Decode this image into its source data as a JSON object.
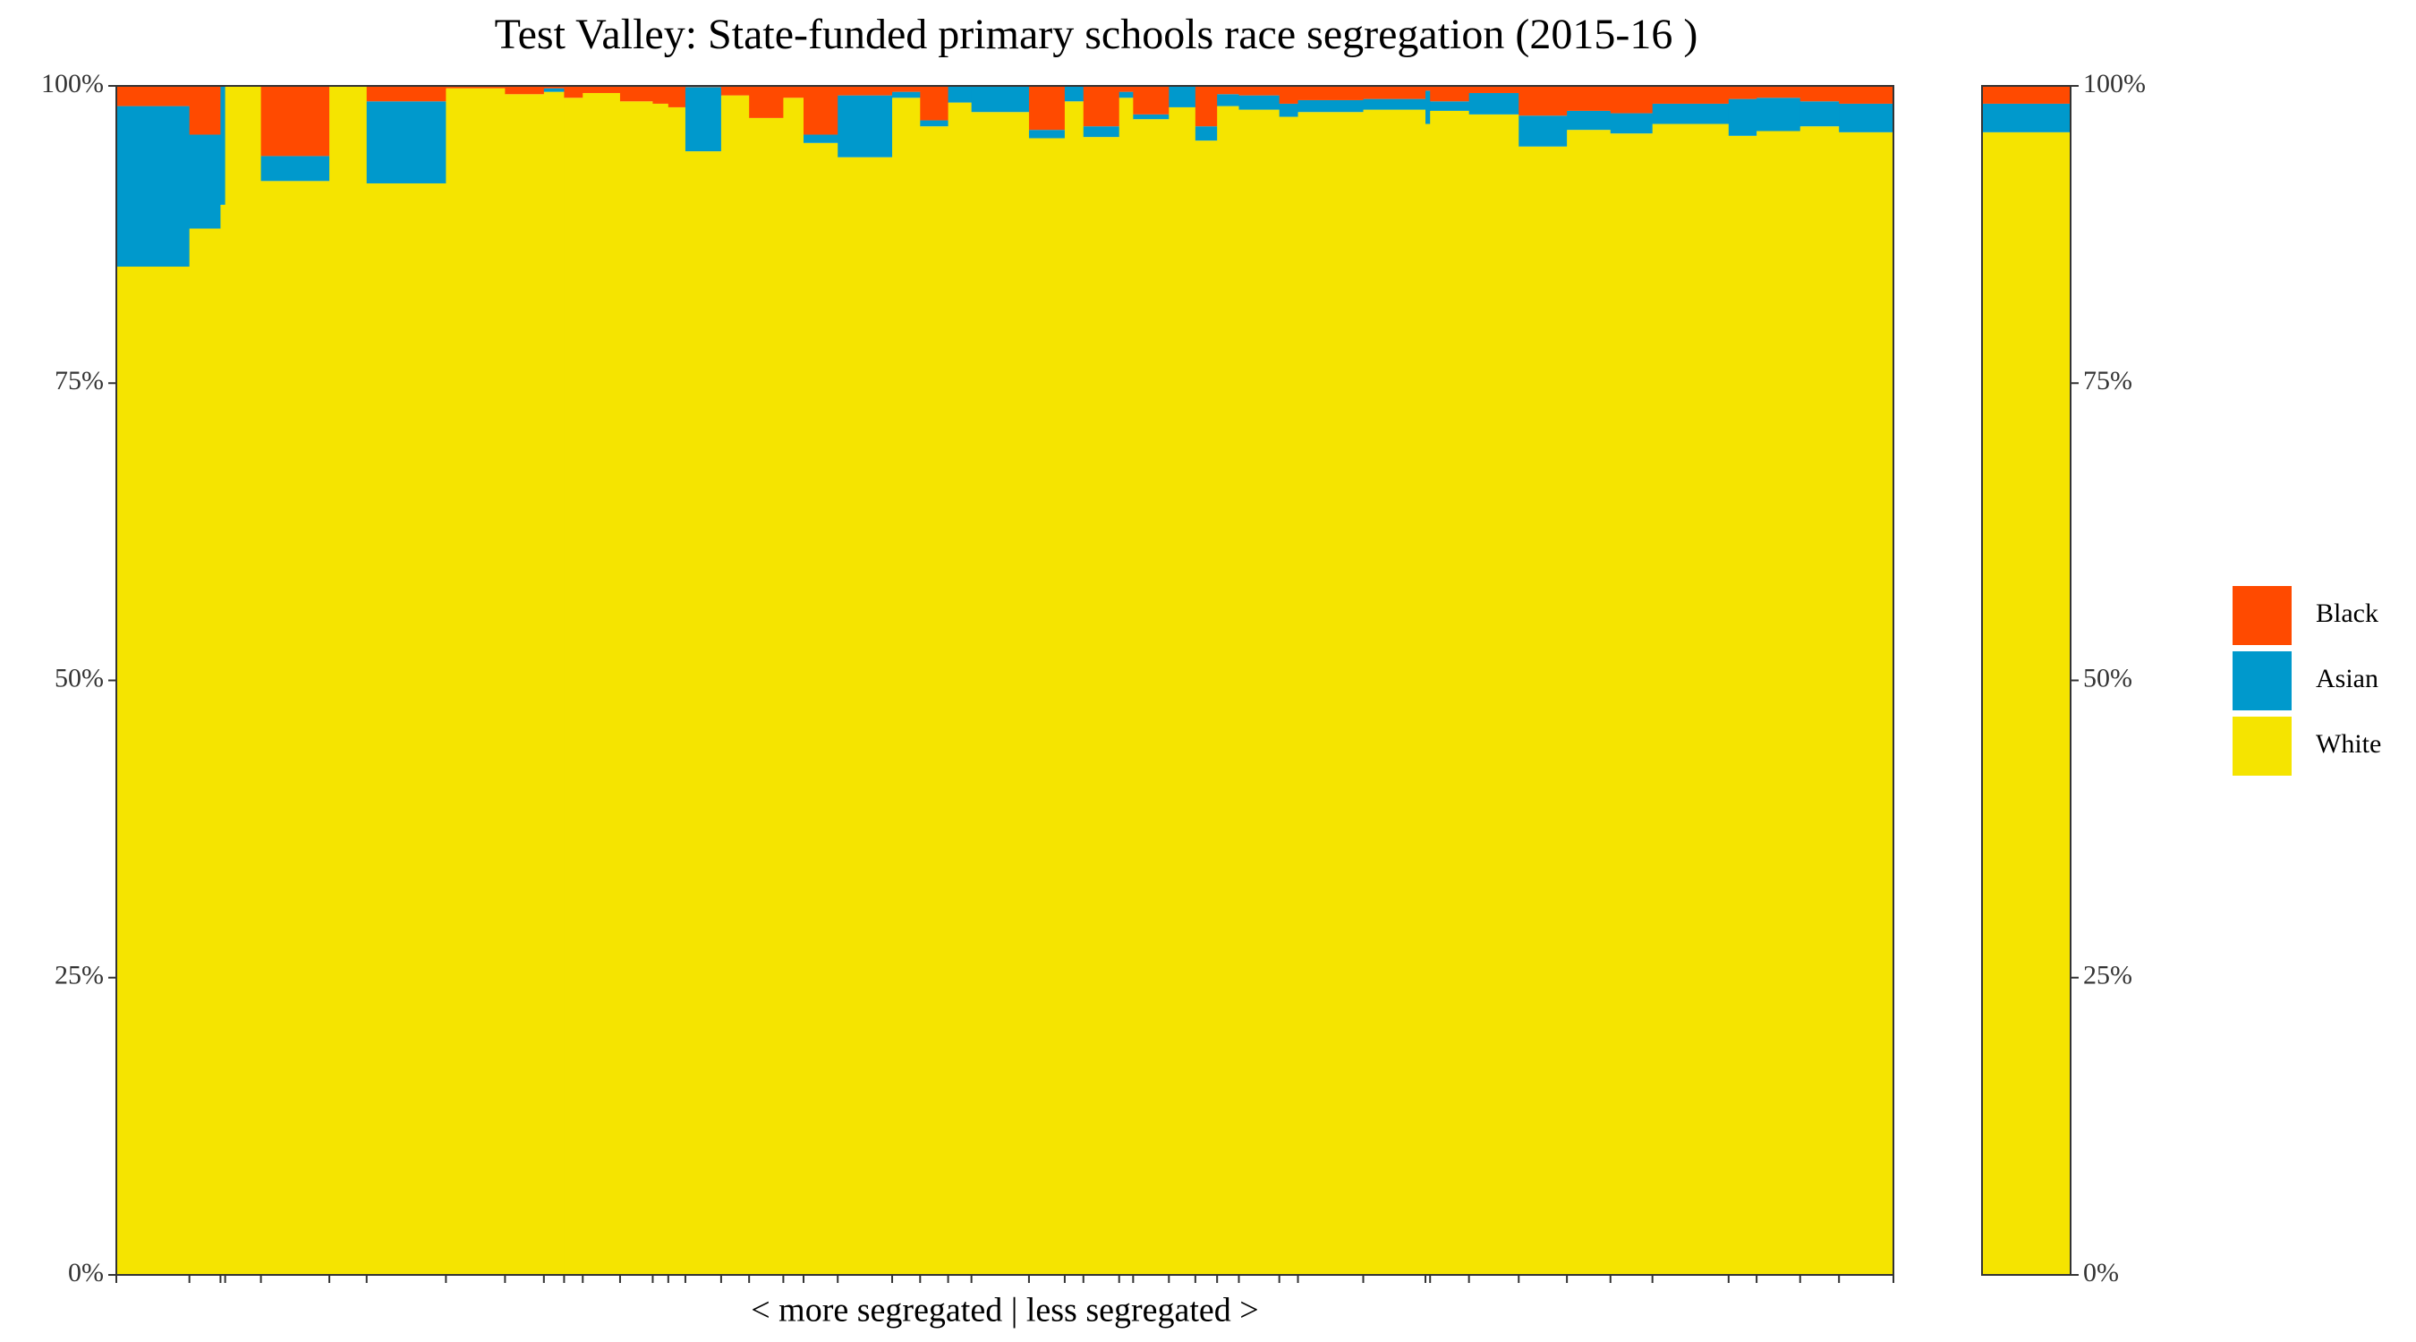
{
  "chart_data": {
    "type": "mekko",
    "title": "Test Valley: State-funded primary schools race segregation (2015-16 )",
    "xlabel": "< more segregated | less segregated >",
    "widths": [
      47,
      20,
      3,
      23,
      44,
      24,
      51,
      38,
      25,
      13,
      12,
      24,
      21,
      10,
      11,
      23,
      18,
      22,
      13,
      22,
      35,
      18,
      18,
      15,
      37,
      23,
      12,
      23,
      9,
      23,
      17,
      14,
      14,
      26,
      12,
      42,
      40,
      3,
      25,
      32,
      31,
      28,
      27,
      49,
      18,
      28,
      25,
      35
    ],
    "series": [
      {
        "name": "Black",
        "color": "#ff4a00",
        "values": [
          1.7,
          4.1,
          0,
          0,
          5.9,
          0,
          1.3,
          0.2,
          0.7,
          0.2,
          1,
          0.6,
          1.3,
          1.5,
          1.8,
          0.1,
          0.8,
          2.7,
          1,
          4.1,
          0.8,
          0.5,
          2.9,
          0,
          0,
          3.7,
          0,
          3.4,
          0.5,
          2.4,
          0,
          3.4,
          0.7,
          0.8,
          1.5,
          1.2,
          1.1,
          0.4,
          1.3,
          0.6,
          2.5,
          2.1,
          2.3,
          1.5,
          1.1,
          1,
          1.3,
          1.5
        ],
        "overall": 1.5
      },
      {
        "name": "Asian",
        "color": "#0099cc",
        "values": [
          13.5,
          7.9,
          10,
          0,
          2.1,
          0,
          6.9,
          0,
          0,
          0.3,
          0,
          0,
          0,
          0,
          0,
          5.4,
          0,
          0,
          0,
          0.7,
          5.2,
          0.5,
          0.5,
          1.4,
          2.2,
          0.7,
          1.3,
          0.9,
          0.5,
          0.4,
          1.8,
          1.2,
          1,
          1.2,
          1.1,
          1,
          0.9,
          2.8,
          0.8,
          1.8,
          2.6,
          1.6,
          1.7,
          1.7,
          3.1,
          2.8,
          2.1,
          2.4
        ],
        "overall": 2.4
      },
      {
        "name": "White",
        "color": "#f5e400",
        "values": [
          84.8,
          88,
          90,
          100,
          92,
          100,
          91.8,
          99.8,
          99.3,
          99.5,
          99,
          99.4,
          98.7,
          98.5,
          98.2,
          94.5,
          99.2,
          97.3,
          99,
          95.2,
          94,
          99,
          96.6,
          98.6,
          97.8,
          95.6,
          98.7,
          95.7,
          99,
          97.2,
          98.2,
          95.4,
          98.3,
          98,
          97.4,
          97.8,
          98,
          96.8,
          97.9,
          97.6,
          94.9,
          96.3,
          96,
          96.8,
          95.8,
          96.2,
          96.6,
          96.1
        ],
        "overall": 96.1
      }
    ],
    "ylim": [
      0,
      100
    ],
    "yticks": [
      {
        "value": 0,
        "label": "0%"
      },
      {
        "value": 25,
        "label": "25%"
      },
      {
        "value": 50,
        "label": "50%"
      },
      {
        "value": 75,
        "label": "75%"
      },
      {
        "value": 100,
        "label": "100%"
      }
    ],
    "y2lim": [
      0,
      100
    ],
    "y2ticks": [
      {
        "value": 0,
        "label": "0%"
      },
      {
        "value": 25,
        "label": "25%"
      },
      {
        "value": 50,
        "label": "50%"
      },
      {
        "value": 75,
        "label": "75%"
      },
      {
        "value": 100,
        "label": "100%"
      }
    ]
  }
}
